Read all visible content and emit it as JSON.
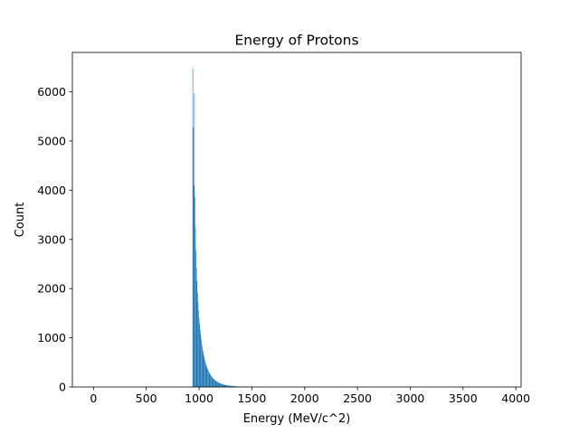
{
  "chart_data": {
    "type": "bar",
    "title": "Energy of Protons",
    "xlabel": "Energy (MeV/c^2)",
    "ylabel": "Count",
    "xlim": [
      -200,
      4050
    ],
    "ylim": [
      0,
      6800
    ],
    "xticks": [
      0,
      500,
      1000,
      1500,
      2000,
      2500,
      3000,
      3500,
      4000
    ],
    "yticks": [
      0,
      1000,
      2000,
      3000,
      4000,
      5000,
      6000
    ],
    "bin_width": 5,
    "bins": [
      [
        938,
        6480
      ],
      [
        943,
        5280
      ],
      [
        948,
        4100
      ],
      [
        953,
        5970
      ],
      [
        958,
        3860
      ],
      [
        963,
        3250
      ],
      [
        968,
        2780
      ],
      [
        973,
        2420
      ],
      [
        978,
        2150
      ],
      [
        983,
        1920
      ],
      [
        988,
        1730
      ],
      [
        993,
        1560
      ],
      [
        998,
        1410
      ],
      [
        1003,
        1280
      ],
      [
        1008,
        1160
      ],
      [
        1013,
        1060
      ],
      [
        1018,
        970
      ],
      [
        1023,
        890
      ],
      [
        1028,
        815
      ],
      [
        1033,
        750
      ],
      [
        1038,
        690
      ],
      [
        1043,
        635
      ],
      [
        1048,
        585
      ],
      [
        1053,
        540
      ],
      [
        1058,
        500
      ],
      [
        1063,
        462
      ],
      [
        1068,
        428
      ],
      [
        1073,
        397
      ],
      [
        1078,
        368
      ],
      [
        1083,
        342
      ],
      [
        1088,
        318
      ],
      [
        1093,
        296
      ],
      [
        1098,
        275
      ],
      [
        1103,
        256
      ],
      [
        1108,
        239
      ],
      [
        1113,
        223
      ],
      [
        1118,
        208
      ],
      [
        1123,
        194
      ],
      [
        1128,
        181
      ],
      [
        1133,
        169
      ],
      [
        1138,
        158
      ],
      [
        1143,
        148
      ],
      [
        1148,
        139
      ],
      [
        1153,
        130
      ],
      [
        1158,
        122
      ],
      [
        1163,
        115
      ],
      [
        1168,
        108
      ],
      [
        1173,
        101
      ],
      [
        1178,
        95
      ],
      [
        1183,
        89
      ],
      [
        1188,
        84
      ],
      [
        1193,
        79
      ],
      [
        1198,
        74
      ],
      [
        1203,
        70
      ],
      [
        1208,
        66
      ],
      [
        1213,
        62
      ],
      [
        1218,
        58
      ],
      [
        1223,
        55
      ],
      [
        1228,
        52
      ],
      [
        1233,
        49
      ],
      [
        1238,
        46
      ],
      [
        1243,
        43
      ],
      [
        1248,
        41
      ],
      [
        1253,
        39
      ],
      [
        1258,
        37
      ],
      [
        1263,
        35
      ],
      [
        1268,
        33
      ],
      [
        1273,
        31
      ],
      [
        1278,
        29
      ],
      [
        1283,
        27
      ],
      [
        1288,
        26
      ],
      [
        1293,
        24
      ],
      [
        1298,
        23
      ],
      [
        1303,
        22
      ],
      [
        1308,
        21
      ],
      [
        1313,
        20
      ],
      [
        1318,
        19
      ],
      [
        1323,
        18
      ],
      [
        1328,
        17
      ],
      [
        1333,
        16
      ],
      [
        1338,
        15
      ],
      [
        1343,
        14
      ],
      [
        1348,
        13
      ],
      [
        1353,
        12
      ],
      [
        1358,
        12
      ],
      [
        1363,
        11
      ],
      [
        1368,
        10
      ],
      [
        1373,
        10
      ],
      [
        1378,
        9
      ],
      [
        1383,
        9
      ],
      [
        1388,
        8
      ],
      [
        1393,
        8
      ],
      [
        1398,
        7
      ],
      [
        1403,
        7
      ],
      [
        1408,
        6
      ],
      [
        1413,
        6
      ],
      [
        1418,
        6
      ],
      [
        1423,
        5
      ],
      [
        1428,
        5
      ],
      [
        1433,
        5
      ],
      [
        1438,
        4
      ],
      [
        1443,
        4
      ],
      [
        1448,
        4
      ],
      [
        1453,
        4
      ],
      [
        1458,
        3
      ],
      [
        1463,
        3
      ],
      [
        1468,
        3
      ],
      [
        1473,
        3
      ],
      [
        1478,
        3
      ],
      [
        1483,
        2
      ],
      [
        1488,
        2
      ],
      [
        1493,
        2
      ],
      [
        1498,
        2
      ],
      [
        1503,
        2
      ],
      [
        1508,
        2
      ],
      [
        1513,
        2
      ],
      [
        1518,
        1
      ],
      [
        1523,
        1
      ],
      [
        1528,
        1
      ],
      [
        1533,
        1
      ],
      [
        1538,
        1
      ],
      [
        1543,
        1
      ],
      [
        1548,
        1
      ],
      [
        1553,
        1
      ],
      [
        1558,
        1
      ],
      [
        1563,
        1
      ],
      [
        1568,
        1
      ],
      [
        1573,
        1
      ],
      [
        1578,
        1
      ],
      [
        1583,
        1
      ],
      [
        1588,
        1
      ],
      [
        1593,
        1
      ],
      [
        1598,
        1
      ]
    ],
    "bar_color": "#1f77b4",
    "grid": false,
    "legend": false
  }
}
